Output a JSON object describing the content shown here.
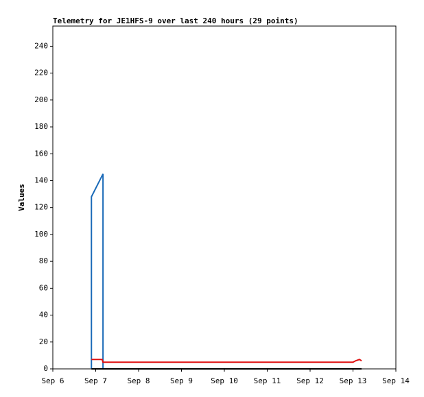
{
  "chart_data": {
    "type": "line",
    "title": "Telemetry for JE1HFS-9 over last 240 hours (29 points)",
    "y_label": "Values",
    "xlim": [
      6,
      14
    ],
    "xticks": [
      {
        "value": 6,
        "label": "Sep 6"
      },
      {
        "value": 7,
        "label": "Sep 7"
      },
      {
        "value": 8,
        "label": "Sep 8"
      },
      {
        "value": 9,
        "label": "Sep 9"
      },
      {
        "value": 10,
        "label": "Sep 10"
      },
      {
        "value": 11,
        "label": "Sep 11"
      },
      {
        "value": 12,
        "label": "Sep 12"
      },
      {
        "value": 13,
        "label": "Sep 13"
      },
      {
        "value": 14,
        "label": "Sep 14"
      }
    ],
    "ylim": [
      0,
      255
    ],
    "yticks": [
      0,
      20,
      40,
      60,
      80,
      100,
      120,
      140,
      160,
      180,
      200,
      220,
      240
    ],
    "series": [
      {
        "color": "#1a6ab8",
        "x": [
          6.9,
          6.9,
          7.17,
          7.17
        ],
        "values": [
          0,
          128,
          145,
          0
        ]
      },
      {
        "color": "#e01010",
        "x": [
          6.9,
          7.15,
          7.17,
          13.0,
          13.06,
          13.15,
          13.2
        ],
        "values": [
          7,
          7,
          5,
          5,
          6,
          7,
          6
        ]
      },
      {
        "color": "#000000",
        "x": [
          6.9,
          13.2
        ],
        "values": [
          0,
          0
        ]
      }
    ]
  }
}
